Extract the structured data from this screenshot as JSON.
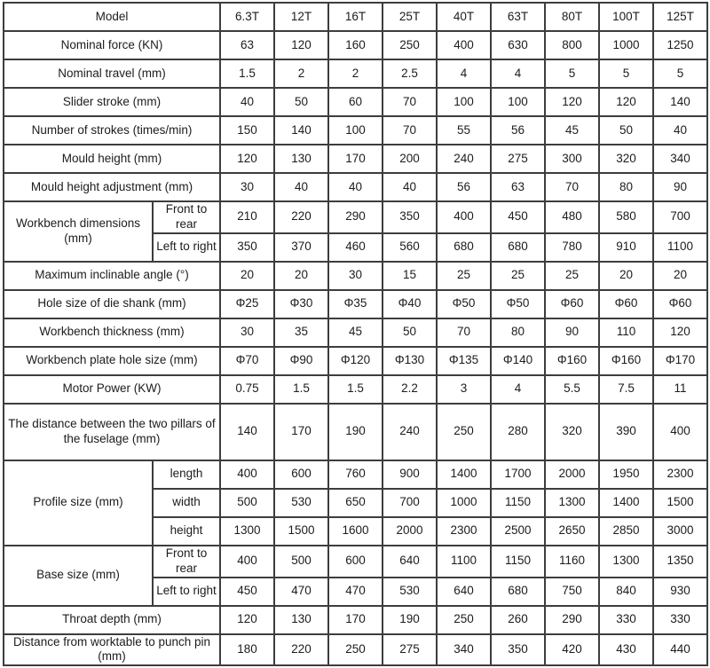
{
  "colors": {
    "border": "#3d3d3d",
    "text": "#1c1c1c",
    "background": "#ffffff"
  },
  "chart_data": {
    "type": "table",
    "rows": [
      {
        "label": "Model",
        "values": [
          "6.3T",
          "12T",
          "16T",
          "25T",
          "40T",
          "63T",
          "80T",
          "100T",
          "125T"
        ]
      },
      {
        "label": "Nominal force (KN)",
        "values": [
          "63",
          "120",
          "160",
          "250",
          "400",
          "630",
          "800",
          "1000",
          "1250"
        ]
      },
      {
        "label": "Nominal travel (mm)",
        "values": [
          "1.5",
          "2",
          "2",
          "2.5",
          "4",
          "4",
          "5",
          "5",
          "5"
        ]
      },
      {
        "label": "Slider stroke (mm)",
        "values": [
          "40",
          "50",
          "60",
          "70",
          "100",
          "100",
          "120",
          "120",
          "140"
        ]
      },
      {
        "label": "Number of strokes (times/min)",
        "values": [
          "150",
          "140",
          "100",
          "70",
          "55",
          "56",
          "45",
          "50",
          "40"
        ]
      },
      {
        "label": "Mould height (mm)",
        "values": [
          "120",
          "130",
          "170",
          "200",
          "240",
          "275",
          "300",
          "320",
          "340"
        ]
      },
      {
        "label": "Mould height adjustment (mm)",
        "values": [
          "30",
          "40",
          "40",
          "40",
          "56",
          "63",
          "70",
          "80",
          "90"
        ]
      },
      {
        "label": "Workbench dimensions (mm)",
        "subrows": [
          {
            "sublabel": "Front to rear",
            "values": [
              "210",
              "220",
              "290",
              "350",
              "400",
              "450",
              "480",
              "580",
              "700"
            ]
          },
          {
            "sublabel": "Left to right",
            "values": [
              "350",
              "370",
              "460",
              "560",
              "680",
              "680",
              "780",
              "910",
              "1100"
            ]
          }
        ]
      },
      {
        "label": "Maximum inclinable angle (°)",
        "values": [
          "20",
          "20",
          "30",
          "15",
          "25",
          "25",
          "25",
          "20",
          "20"
        ]
      },
      {
        "label": "Hole size of die shank (mm)",
        "values": [
          "Φ25",
          "Φ30",
          "Φ35",
          "Φ40",
          "Φ50",
          "Φ50",
          "Φ60",
          "Φ60",
          "Φ60"
        ]
      },
      {
        "label": "Workbench thickness (mm)",
        "values": [
          "30",
          "35",
          "45",
          "50",
          "70",
          "80",
          "90",
          "110",
          "120"
        ]
      },
      {
        "label": "Workbench plate hole size (mm)",
        "values": [
          "Φ70",
          "Φ90",
          "Φ120",
          "Φ130",
          "Φ135",
          "Φ140",
          "Φ160",
          "Φ160",
          "Φ170"
        ]
      },
      {
        "label": "Motor Power (KW)",
        "values": [
          "0.75",
          "1.5",
          "1.5",
          "2.2",
          "3",
          "4",
          "5.5",
          "7.5",
          "11"
        ]
      },
      {
        "label": "The distance between the two pillars of the fuselage (mm)",
        "tall": true,
        "values": [
          "140",
          "170",
          "190",
          "240",
          "250",
          "280",
          "320",
          "390",
          "400"
        ]
      },
      {
        "label": "Profile size (mm)",
        "subrows": [
          {
            "sublabel": "length",
            "values": [
              "400",
              "600",
              "760",
              "900",
              "1400",
              "1700",
              "2000",
              "1950",
              "2300"
            ]
          },
          {
            "sublabel": "width",
            "values": [
              "500",
              "530",
              "650",
              "700",
              "1000",
              "1150",
              "1300",
              "1400",
              "1500"
            ]
          },
          {
            "sublabel": "height",
            "values": [
              "1300",
              "1500",
              "1600",
              "2000",
              "2300",
              "2500",
              "2650",
              "2850",
              "3000"
            ]
          }
        ]
      },
      {
        "label": "Base size (mm)",
        "subrows": [
          {
            "sublabel": "Front to rear",
            "values": [
              "400",
              "500",
              "600",
              "640",
              "1100",
              "1150",
              "1160",
              "1300",
              "1350"
            ]
          },
          {
            "sublabel": "Left to right",
            "values": [
              "450",
              "470",
              "470",
              "530",
              "640",
              "680",
              "750",
              "840",
              "930"
            ]
          }
        ]
      },
      {
        "label": "Throat depth (mm)",
        "values": [
          "120",
          "130",
          "170",
          "190",
          "250",
          "260",
          "290",
          "330",
          "330"
        ]
      },
      {
        "label": "Distance from worktable to punch pin (mm)",
        "values": [
          "180",
          "220",
          "250",
          "275",
          "340",
          "350",
          "420",
          "430",
          "440"
        ]
      }
    ]
  }
}
